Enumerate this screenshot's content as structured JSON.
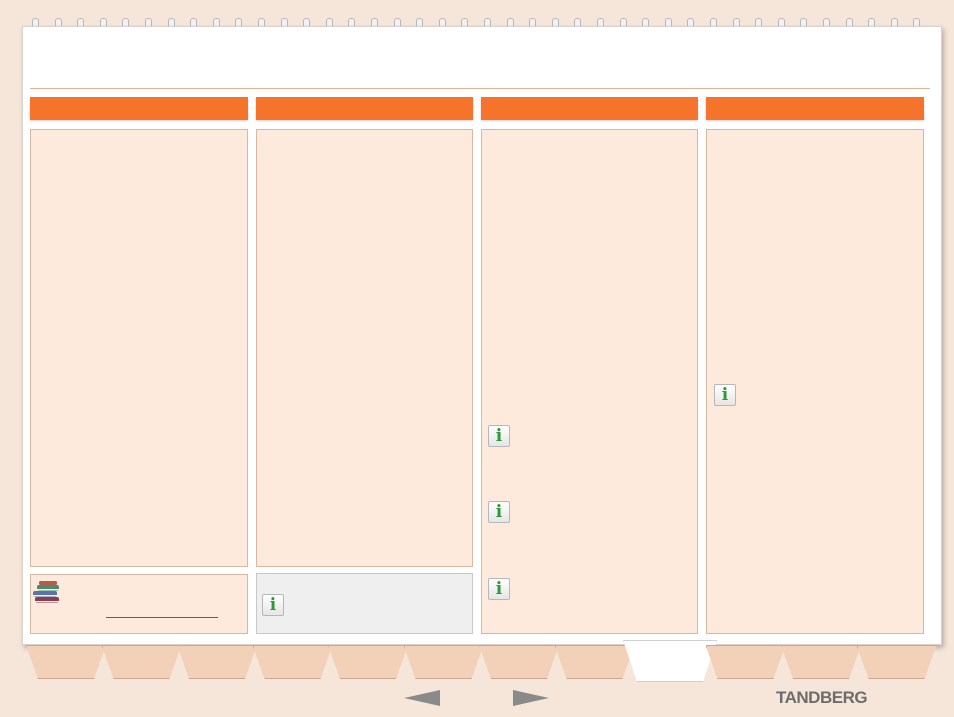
{
  "brand": {
    "logo_text": "TANDBERG"
  },
  "columns": [
    {
      "heading": ""
    },
    {
      "heading": ""
    },
    {
      "heading": ""
    },
    {
      "heading": ""
    }
  ],
  "icons": {
    "info": "info-icon",
    "books": "books-icon",
    "prev": "arrow-left-icon",
    "next": "arrow-right-icon"
  },
  "colors": {
    "accent": "#f5732b",
    "panel": "#fdeadc",
    "background": "#f6e6da"
  },
  "tabs": {
    "count": 12,
    "active_index": 8
  }
}
